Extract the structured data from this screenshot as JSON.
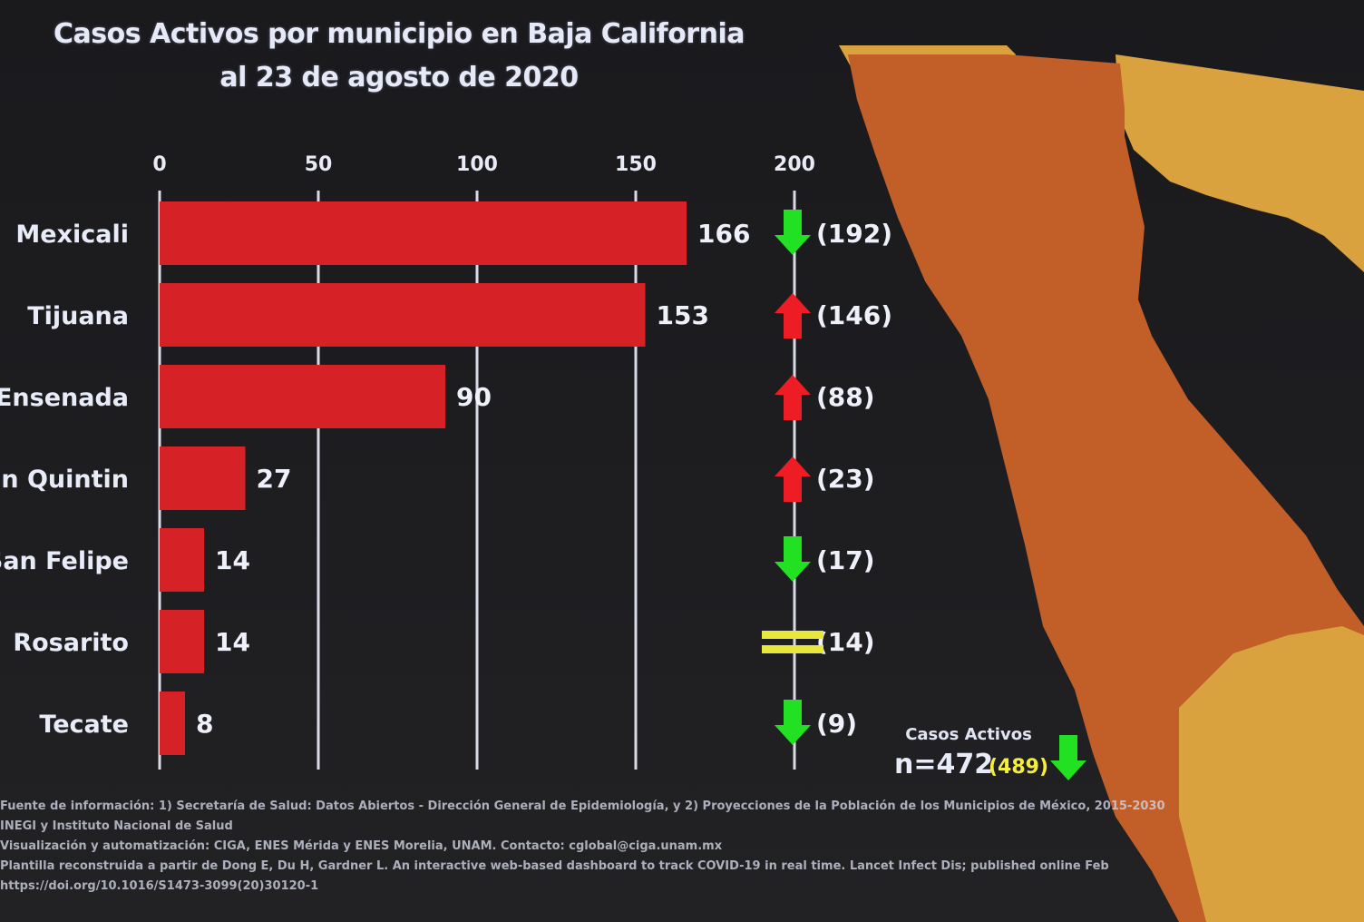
{
  "title_line1": "Casos Activos por municipio en Baja California",
  "title_line2": "al 23 de agosto de 2020",
  "chart_data": {
    "type": "bar",
    "orientation": "horizontal",
    "categories": [
      "Mexicali",
      "Tijuana",
      "Ensenada",
      "San Quintin",
      "San Felipe",
      "Rosarito",
      "Tecate"
    ],
    "values": [
      166,
      153,
      90,
      27,
      14,
      14,
      8
    ],
    "previous_values": [
      192,
      146,
      88,
      23,
      17,
      14,
      9
    ],
    "previous_labels": [
      "(192)",
      "(146)",
      "(88)",
      "(23)",
      "(17)",
      "(14)",
      "(9)"
    ],
    "trend": [
      "down",
      "up",
      "up",
      "up",
      "down",
      "equal",
      "down"
    ],
    "xlim": [
      0,
      200
    ],
    "xticks": [
      0,
      50,
      100,
      150,
      200
    ],
    "grid": true,
    "bar_color": "#d62226",
    "up_color": "#ee1c24",
    "down_color": "#22e022",
    "equal_color": "#e8e83a"
  },
  "totals": {
    "caption": "Casos Activos",
    "current": "n=472",
    "previous": "(489)",
    "trend": "down"
  },
  "sources": [
    "Fuente de información: 1) Secretaría de Salud: Datos Abiertos - Dirección General de Epidemiología, y 2) Proyecciones de la Población de los Municipios de México, 2015-2030",
    "INEGI y Instituto Nacional de Salud",
    "Visualización y automatización: CIGA, ENES Mérida y ENES Morelia, UNAM. Contacto: cglobal@ciga.unam.mx",
    "Plantilla reconstruida a partir de Dong E, Du H, Gardner L. An interactive web-based dashboard to track COVID-19 in real time. Lancet Infect Dis; published online Feb",
    "https://doi.org/10.1016/S1473-3099(20)30120-1"
  ],
  "map_colors": {
    "sea": "#1c1d20",
    "state": "#c25e28",
    "neighbor": "#d9a23e"
  }
}
